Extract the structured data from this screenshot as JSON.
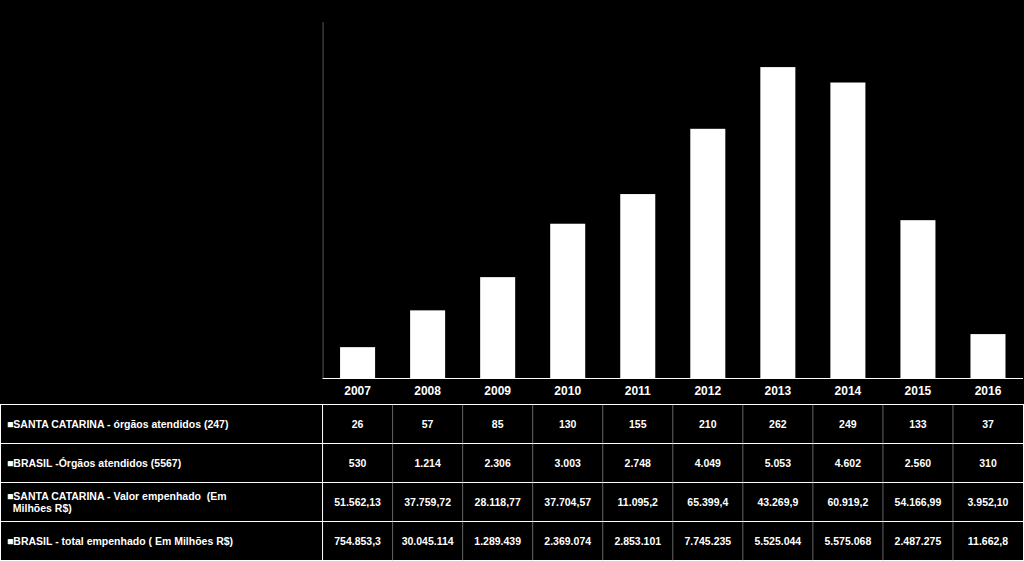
{
  "chart_data": {
    "type": "bar",
    "categories": [
      "2007",
      "2008",
      "2009",
      "2010",
      "2011",
      "2012",
      "2013",
      "2014",
      "2015",
      "2016"
    ],
    "values": [
      26,
      57,
      85,
      130,
      155,
      210,
      262,
      249,
      133,
      37
    ],
    "color": "#ffffff",
    "ylim": [
      0,
      300
    ],
    "tick_labels": "x",
    "grid": false,
    "table": [
      {
        "label": "■SANTA CATARINA - órgãos atendidos (247)",
        "cells": [
          "26",
          "57",
          "85",
          "130",
          "155",
          "210",
          "262",
          "249",
          "133",
          "37"
        ]
      },
      {
        "label": "■BRASIL -Órgãos atendidos (5567)",
        "cells": [
          "530",
          "1.214",
          "2.306",
          "3.003",
          "2.748",
          "4.049",
          "5.053",
          "4.602",
          "2.560",
          "310"
        ]
      },
      {
        "label": "■SANTA CATARINA - Valor empenhado  (Em\n  Milhões R$)",
        "cells": [
          "51.562,13",
          "37.759,72",
          "28.118,77",
          "37.704,57",
          "11.095,2",
          "65.399,4",
          "43.269,9",
          "60.919,2",
          "54.166,99",
          "3.952,10"
        ]
      },
      {
        "label": "■BRASIL - total empenhado ( Em Milhões R$)",
        "cells": [
          "754.853,3",
          "30.045.114",
          "1.289.439",
          "2.369.074",
          "2.853.101",
          "7.745.235",
          "5.525.044",
          "5.575.068",
          "2.487.275",
          "11.662,8"
        ]
      }
    ]
  }
}
